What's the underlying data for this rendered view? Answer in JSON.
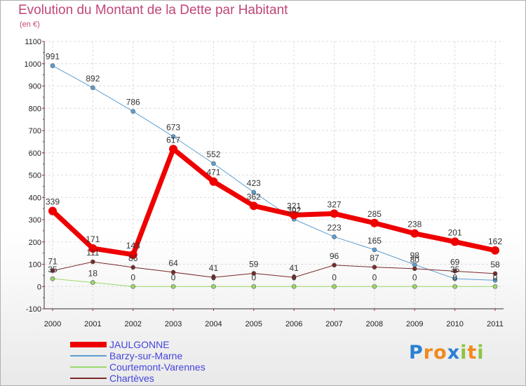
{
  "header": {
    "title": "Evolution du Montant de la Dette par Habitant",
    "unit": "(en €)"
  },
  "chart_data": {
    "type": "line",
    "title": "Evolution du Montant de la Dette par Habitant",
    "ylabel": "(en €)",
    "xlabel": "",
    "categories": [
      "2000",
      "2001",
      "2002",
      "2003",
      "2004",
      "2005",
      "2006",
      "2007",
      "2008",
      "2009",
      "2010",
      "2011"
    ],
    "ylim": [
      -100,
      1100
    ],
    "yticks": [
      -100,
      0,
      100,
      200,
      300,
      400,
      500,
      600,
      700,
      800,
      900,
      1000,
      1100
    ],
    "grid": true,
    "legend_position": "bottom-left",
    "series": [
      {
        "name": "JAULGONNE",
        "color": "#ee0000",
        "emphasis": true,
        "values": [
          339,
          171,
          143,
          617,
          471,
          362,
          321,
          327,
          285,
          238,
          201,
          162
        ],
        "labels": [
          "339",
          "171",
          "143",
          "617",
          "471",
          "362",
          "321",
          "327",
          "285",
          "238",
          "201",
          "162"
        ]
      },
      {
        "name": "Barzy-sur-Marne",
        "color": "#5d9fd2",
        "values": [
          991,
          892,
          786,
          673,
          552,
          423,
          302,
          223,
          165,
          98,
          35,
          28
        ],
        "labels": [
          "991",
          "892",
          "786",
          "673",
          "552",
          "423",
          "302",
          "223",
          "165",
          "98",
          "35",
          ""
        ]
      },
      {
        "name": "Courtemont-Varennes",
        "color": "#9ad96a",
        "values": [
          35,
          18,
          0,
          0,
          0,
          0,
          0,
          0,
          0,
          0,
          0,
          0
        ],
        "labels": [
          "35",
          "18",
          "0",
          "0",
          "0",
          "0",
          "0",
          "0",
          "0",
          "0",
          "0",
          "0"
        ]
      },
      {
        "name": "Chartèves",
        "color": "#7a2a2a",
        "values": [
          71,
          111,
          86,
          64,
          41,
          59,
          41,
          96,
          87,
          80,
          69,
          58
        ],
        "labels": [
          "71",
          "111",
          "86",
          "64",
          "41",
          "59",
          "41",
          "96",
          "87",
          "80",
          "69",
          "58"
        ]
      }
    ]
  },
  "logo": {
    "letters": [
      "P",
      "r",
      "o",
      "x",
      "i",
      "t",
      "i"
    ],
    "colors": [
      "#2a7fd4",
      "#f08a1c",
      "#f08a1c",
      "#2a7fd4",
      "#8cc63f",
      "#f08a1c",
      "#8cc63f"
    ]
  }
}
